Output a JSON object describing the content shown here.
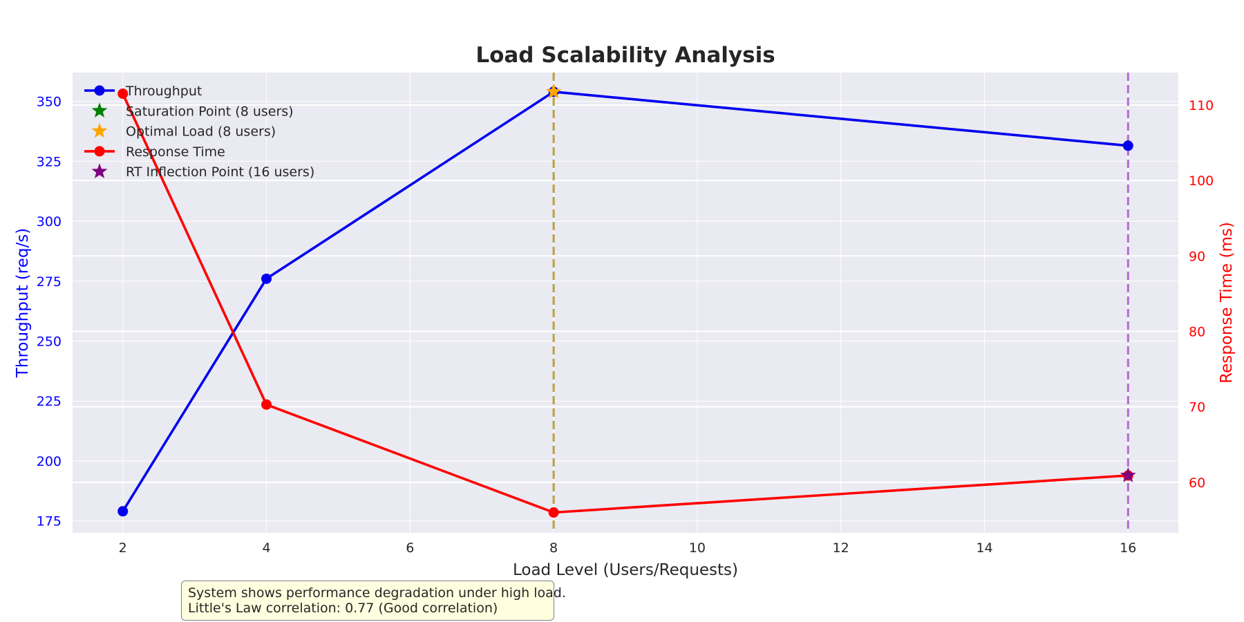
{
  "chart_data": {
    "type": "line",
    "title": "Load Scalability Analysis",
    "xlabel": "Load Level (Users/Requests)",
    "ylabel_left": "Throughput (req/s)",
    "ylabel_right": "Response Time (ms)",
    "x": [
      2,
      4,
      8,
      16
    ],
    "xlim": [
      1.3,
      16.7
    ],
    "xticks": [
      2,
      4,
      6,
      8,
      10,
      12,
      14,
      16
    ],
    "ylim_left": [
      170,
      362
    ],
    "yticks_left": [
      175,
      200,
      225,
      250,
      275,
      300,
      325,
      350
    ],
    "ylim_right": [
      53.3,
      114.3
    ],
    "yticks_right": [
      60,
      70,
      80,
      90,
      100,
      110
    ],
    "grid": true,
    "legend_placement": "top-left",
    "series": [
      {
        "name": "Throughput",
        "axis": "left",
        "color": "#0000ee",
        "values": [
          179,
          276,
          354,
          331.5
        ]
      },
      {
        "name": "Response Time",
        "axis": "right",
        "color": "#ff0000",
        "values": [
          111.5,
          70.3,
          56,
          60.9
        ]
      }
    ],
    "markers": [
      {
        "name": "Saturation Point (8 users)",
        "x": 8,
        "y": 354,
        "axis": "left",
        "color": "#008000",
        "shape": "star",
        "shown_in_plot": false
      },
      {
        "name": "Optimal Load (8 users)",
        "x": 8,
        "y": 354,
        "axis": "left",
        "color": "#ffa500",
        "shape": "star",
        "shown_in_plot": true
      },
      {
        "name": "RT Inflection Point (16 users)",
        "x": 16,
        "y": 60.9,
        "axis": "right",
        "color": "#800080",
        "shape": "star",
        "shown_in_plot": true
      }
    ],
    "vlines": [
      {
        "x": 8,
        "color": "#b8a23a",
        "style": "dashed"
      },
      {
        "x": 16,
        "color": "#b46ad0",
        "style": "dashed"
      }
    ],
    "legend": [
      {
        "label": "Throughput",
        "color": "#0000ee",
        "kind": "line-marker"
      },
      {
        "label": "Saturation Point (8 users)",
        "color": "#008000",
        "kind": "star"
      },
      {
        "label": "Optimal Load (8 users)",
        "color": "#ffa500",
        "kind": "star"
      },
      {
        "label": "Response Time",
        "color": "#ff0000",
        "kind": "line-marker"
      },
      {
        "label": "RT Inflection Point (16 users)",
        "color": "#800080",
        "kind": "star"
      }
    ],
    "annotation": [
      "System shows performance degradation under high load.",
      "Little's Law correlation: 0.77 (Good correlation)"
    ]
  }
}
